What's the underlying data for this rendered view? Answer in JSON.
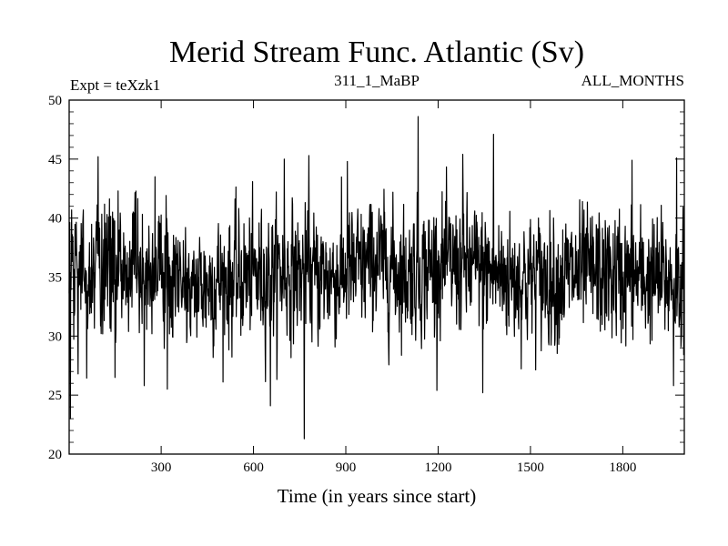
{
  "chart_data": {
    "type": "line",
    "title": "Merid Stream Func. Atlantic (Sv)",
    "subtitle_left": "Expt = teXzk1",
    "subtitle_center": "311_1_MaBP",
    "subtitle_right": "ALL_MONTHS",
    "xlabel": "Time (in years since start)",
    "ylabel": "",
    "xlim": [
      1,
      2000
    ],
    "ylim": [
      20,
      50
    ],
    "xticks": [
      300,
      600,
      900,
      1200,
      1500,
      1800
    ],
    "yticks": [
      20,
      25,
      30,
      35,
      40,
      45,
      50
    ],
    "xtick_labels": [
      "300",
      "600",
      "900",
      "1200",
      "1500",
      "1800"
    ],
    "ytick_labels": [
      "20",
      "25",
      "30",
      "35",
      "40",
      "45",
      "50"
    ],
    "grid": false,
    "series": [
      {
        "color": "#000000",
        "mean_level": [
          [
            1,
            35.5
          ],
          [
            100,
            35.8
          ],
          [
            200,
            36.0
          ],
          [
            300,
            35.2
          ],
          [
            400,
            34.2
          ],
          [
            500,
            34.8
          ],
          [
            600,
            35.0
          ],
          [
            700,
            35.5
          ],
          [
            800,
            35.0
          ],
          [
            900,
            35.2
          ],
          [
            1000,
            36.3
          ],
          [
            1100,
            35.3
          ],
          [
            1200,
            36.0
          ],
          [
            1300,
            35.8
          ],
          [
            1400,
            35.2
          ],
          [
            1500,
            34.8
          ],
          [
            1600,
            35.0
          ],
          [
            1700,
            35.3
          ],
          [
            1800,
            35.0
          ],
          [
            1900,
            34.8
          ],
          [
            2000,
            34.5
          ]
        ],
        "spread_sv": 2.6,
        "extremes": [
          [
            5,
            23.0
          ],
          [
            30,
            26.8
          ],
          [
            95,
            45.2
          ],
          [
            150,
            26.5
          ],
          [
            245,
            25.8
          ],
          [
            280,
            43.5
          ],
          [
            320,
            25.5
          ],
          [
            655,
            24.1
          ],
          [
            700,
            45.0
          ],
          [
            765,
            21.3
          ],
          [
            780,
            45.3
          ],
          [
            905,
            44.8
          ],
          [
            1135,
            48.6
          ],
          [
            1280,
            45.4
          ],
          [
            1345,
            25.2
          ],
          [
            1380,
            47.1
          ],
          [
            1830,
            44.9
          ],
          [
            1965,
            25.8
          ],
          [
            1975,
            45.1
          ]
        ]
      }
    ]
  }
}
